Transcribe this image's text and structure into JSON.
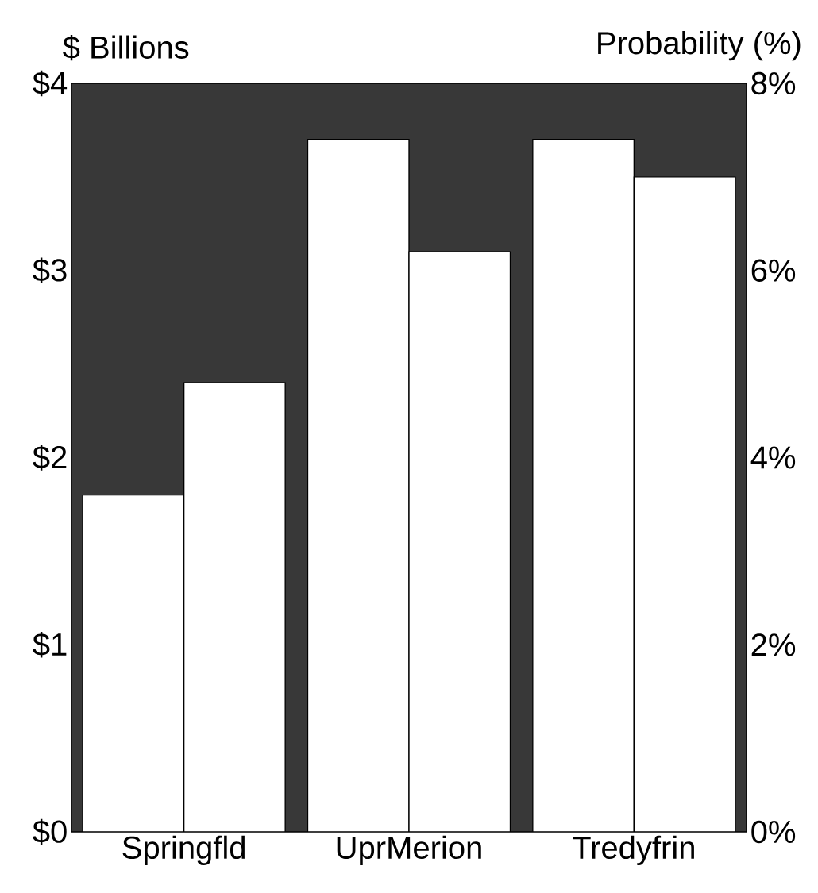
{
  "chart_data": {
    "type": "bar",
    "categories": [
      "Springfld",
      "UprMerion",
      "Tredyfrin"
    ],
    "ylabel": "$ Billions",
    "y2label": "Probability (%)",
    "ylim": [
      0,
      4
    ],
    "yticks": [
      {
        "value": 0,
        "label": "$0"
      },
      {
        "value": 1,
        "label": "$1"
      },
      {
        "value": 2,
        "label": "$2"
      },
      {
        "value": 3,
        "label": "$3"
      },
      {
        "value": 4,
        "label": "$4"
      }
    ],
    "y2lim": [
      0,
      8
    ],
    "y2ticks": [
      {
        "value": 0,
        "label": "0%"
      },
      {
        "value": 2,
        "label": "2%"
      },
      {
        "value": 4,
        "label": "4%"
      },
      {
        "value": 6,
        "label": "6%"
      },
      {
        "value": 8,
        "label": "8%"
      }
    ],
    "series": [
      {
        "color": "#ffffff",
        "values": [
          1.8,
          3.7,
          3.7
        ]
      },
      {
        "color": "#ffffff",
        "axis": "y2",
        "values": [
          4.8,
          6.2,
          7.0
        ]
      }
    ]
  }
}
